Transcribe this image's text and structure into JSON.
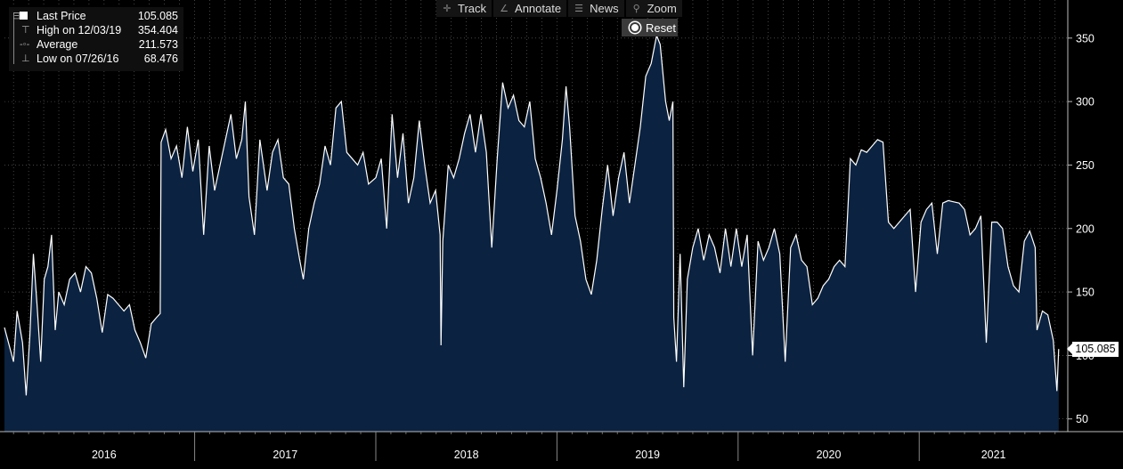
{
  "toolbar": {
    "track": {
      "label": "Track",
      "icon": "crosshair-icon"
    },
    "annotate": {
      "label": "Annotate",
      "icon": "pencil-icon"
    },
    "news": {
      "label": "News",
      "icon": "news-icon"
    },
    "zoom": {
      "label": "Zoom",
      "icon": "magnifier-icon"
    },
    "reset": {
      "label": "Reset"
    }
  },
  "legend": {
    "last_price": {
      "label": "Last Price",
      "value": "105.085"
    },
    "high": {
      "label": "High on 12/03/19",
      "value": "354.404"
    },
    "average": {
      "label": "Average",
      "value": "211.573"
    },
    "low": {
      "label": "Low on 07/26/16",
      "value": "68.476"
    }
  },
  "last_value_tag": "105.085",
  "colors": {
    "background": "#000000",
    "area_fill": "#0b2240",
    "line": "#ffffff",
    "grid": "#7a7a7a"
  },
  "chart_data": {
    "type": "area",
    "y_ticks": [
      "50",
      "100",
      "150",
      "200",
      "250",
      "300",
      "350"
    ],
    "ylim": [
      40,
      380
    ],
    "x_ticks": [
      "2016",
      "2017",
      "2018",
      "2019",
      "2020",
      "2021"
    ],
    "xlim": [
      2015.95,
      2021.82
    ],
    "grid": true,
    "series": [
      {
        "values": [
          [
            2015.95,
            122
          ],
          [
            2016.0,
            95
          ],
          [
            2016.02,
            135
          ],
          [
            2016.05,
            110
          ],
          [
            2016.07,
            68.5
          ],
          [
            2016.09,
            115
          ],
          [
            2016.11,
            180
          ],
          [
            2016.13,
            140
          ],
          [
            2016.15,
            95
          ],
          [
            2016.17,
            160
          ],
          [
            2016.19,
            170
          ],
          [
            2016.21,
            195
          ],
          [
            2016.23,
            120
          ],
          [
            2016.25,
            150
          ],
          [
            2016.28,
            140
          ],
          [
            2016.31,
            160
          ],
          [
            2016.34,
            165
          ],
          [
            2016.37,
            150
          ],
          [
            2016.4,
            170
          ],
          [
            2016.43,
            165
          ],
          [
            2016.46,
            145
          ],
          [
            2016.49,
            118
          ],
          [
            2016.52,
            148
          ],
          [
            2016.55,
            145
          ],
          [
            2016.58,
            140
          ],
          [
            2016.61,
            135
          ],
          [
            2016.64,
            140
          ],
          [
            2016.67,
            120
          ],
          [
            2016.7,
            110
          ],
          [
            2016.73,
            98
          ],
          [
            2016.76,
            125
          ],
          [
            2016.79,
            130
          ],
          [
            2016.81,
            133
          ],
          [
            2016.815,
            268
          ],
          [
            2016.84,
            278
          ],
          [
            2016.87,
            255
          ],
          [
            2016.9,
            265
          ],
          [
            2016.93,
            240
          ],
          [
            2016.96,
            280
          ],
          [
            2016.99,
            245
          ],
          [
            2017.02,
            270
          ],
          [
            2017.05,
            195
          ],
          [
            2017.08,
            265
          ],
          [
            2017.11,
            230
          ],
          [
            2017.14,
            250
          ],
          [
            2017.17,
            270
          ],
          [
            2017.2,
            290
          ],
          [
            2017.23,
            255
          ],
          [
            2017.26,
            270
          ],
          [
            2017.28,
            300
          ],
          [
            2017.3,
            225
          ],
          [
            2017.33,
            195
          ],
          [
            2017.36,
            270
          ],
          [
            2017.4,
            230
          ],
          [
            2017.43,
            260
          ],
          [
            2017.46,
            270
          ],
          [
            2017.49,
            240
          ],
          [
            2017.52,
            235
          ],
          [
            2017.55,
            200
          ],
          [
            2017.58,
            175
          ],
          [
            2017.6,
            160
          ],
          [
            2017.63,
            200
          ],
          [
            2017.66,
            220
          ],
          [
            2017.69,
            235
          ],
          [
            2017.72,
            265
          ],
          [
            2017.75,
            250
          ],
          [
            2017.78,
            295
          ],
          [
            2017.81,
            300
          ],
          [
            2017.84,
            260
          ],
          [
            2017.87,
            255
          ],
          [
            2017.9,
            250
          ],
          [
            2017.93,
            260
          ],
          [
            2017.96,
            235
          ],
          [
            2018.0,
            240
          ],
          [
            2018.03,
            255
          ],
          [
            2018.06,
            200
          ],
          [
            2018.09,
            290
          ],
          [
            2018.12,
            240
          ],
          [
            2018.15,
            275
          ],
          [
            2018.18,
            220
          ],
          [
            2018.21,
            240
          ],
          [
            2018.24,
            285
          ],
          [
            2018.27,
            250
          ],
          [
            2018.3,
            220
          ],
          [
            2018.33,
            230
          ],
          [
            2018.355,
            195
          ],
          [
            2018.36,
            108
          ],
          [
            2018.37,
            190
          ],
          [
            2018.4,
            250
          ],
          [
            2018.43,
            240
          ],
          [
            2018.46,
            255
          ],
          [
            2018.49,
            275
          ],
          [
            2018.52,
            290
          ],
          [
            2018.55,
            260
          ],
          [
            2018.58,
            290
          ],
          [
            2018.61,
            260
          ],
          [
            2018.64,
            185
          ],
          [
            2018.67,
            255
          ],
          [
            2018.7,
            315
          ],
          [
            2018.73,
            295
          ],
          [
            2018.76,
            305
          ],
          [
            2018.79,
            285
          ],
          [
            2018.82,
            280
          ],
          [
            2018.85,
            300
          ],
          [
            2018.88,
            255
          ],
          [
            2018.91,
            240
          ],
          [
            2018.94,
            220
          ],
          [
            2018.97,
            195
          ],
          [
            2019.0,
            230
          ],
          [
            2019.03,
            270
          ],
          [
            2019.05,
            312
          ],
          [
            2019.07,
            280
          ],
          [
            2019.1,
            210
          ],
          [
            2019.13,
            190
          ],
          [
            2019.16,
            160
          ],
          [
            2019.19,
            148
          ],
          [
            2019.22,
            175
          ],
          [
            2019.25,
            215
          ],
          [
            2019.28,
            250
          ],
          [
            2019.31,
            210
          ],
          [
            2019.34,
            240
          ],
          [
            2019.37,
            260
          ],
          [
            2019.4,
            220
          ],
          [
            2019.43,
            250
          ],
          [
            2019.46,
            280
          ],
          [
            2019.49,
            320
          ],
          [
            2019.52,
            330
          ],
          [
            2019.55,
            352
          ],
          [
            2019.57,
            345
          ],
          [
            2019.6,
            300
          ],
          [
            2019.62,
            285
          ],
          [
            2019.64,
            300
          ],
          [
            2019.645,
            130
          ],
          [
            2019.66,
            95
          ],
          [
            2019.68,
            180
          ],
          [
            2019.7,
            75
          ],
          [
            2019.72,
            160
          ],
          [
            2019.75,
            185
          ],
          [
            2019.78,
            200
          ],
          [
            2019.81,
            175
          ],
          [
            2019.84,
            195
          ],
          [
            2019.87,
            185
          ],
          [
            2019.9,
            165
          ],
          [
            2019.93,
            200
          ],
          [
            2019.96,
            170
          ],
          [
            2019.99,
            200
          ],
          [
            2020.02,
            170
          ],
          [
            2020.05,
            195
          ],
          [
            2020.08,
            100
          ],
          [
            2020.11,
            190
          ],
          [
            2020.14,
            175
          ],
          [
            2020.17,
            185
          ],
          [
            2020.2,
            200
          ],
          [
            2020.23,
            180
          ],
          [
            2020.26,
            95
          ],
          [
            2020.29,
            185
          ],
          [
            2020.32,
            195
          ],
          [
            2020.35,
            175
          ],
          [
            2020.38,
            170
          ],
          [
            2020.41,
            140
          ],
          [
            2020.44,
            145
          ],
          [
            2020.47,
            155
          ],
          [
            2020.5,
            160
          ],
          [
            2020.53,
            170
          ],
          [
            2020.56,
            175
          ],
          [
            2020.59,
            170
          ],
          [
            2020.62,
            255
          ],
          [
            2020.65,
            250
          ],
          [
            2020.68,
            262
          ],
          [
            2020.71,
            260
          ],
          [
            2020.74,
            265
          ],
          [
            2020.77,
            270
          ],
          [
            2020.8,
            268
          ],
          [
            2020.83,
            205
          ],
          [
            2020.86,
            200
          ],
          [
            2020.89,
            205
          ],
          [
            2020.92,
            210
          ],
          [
            2020.95,
            215
          ],
          [
            2020.98,
            150
          ],
          [
            2021.01,
            205
          ],
          [
            2021.04,
            215
          ],
          [
            2021.07,
            220
          ],
          [
            2021.1,
            180
          ],
          [
            2021.13,
            220
          ],
          [
            2021.16,
            222
          ],
          [
            2021.19,
            221
          ],
          [
            2021.22,
            220
          ],
          [
            2021.25,
            215
          ],
          [
            2021.28,
            195
          ],
          [
            2021.31,
            200
          ],
          [
            2021.34,
            210
          ],
          [
            2021.37,
            110
          ],
          [
            2021.4,
            205
          ],
          [
            2021.43,
            205
          ],
          [
            2021.46,
            200
          ],
          [
            2021.49,
            170
          ],
          [
            2021.52,
            155
          ],
          [
            2021.55,
            150
          ],
          [
            2021.58,
            190
          ],
          [
            2021.61,
            198
          ],
          [
            2021.64,
            185
          ],
          [
            2021.65,
            120
          ],
          [
            2021.68,
            135
          ],
          [
            2021.71,
            132
          ],
          [
            2021.74,
            112
          ],
          [
            2021.76,
            72
          ],
          [
            2021.77,
            105.085
          ]
        ]
      }
    ]
  }
}
